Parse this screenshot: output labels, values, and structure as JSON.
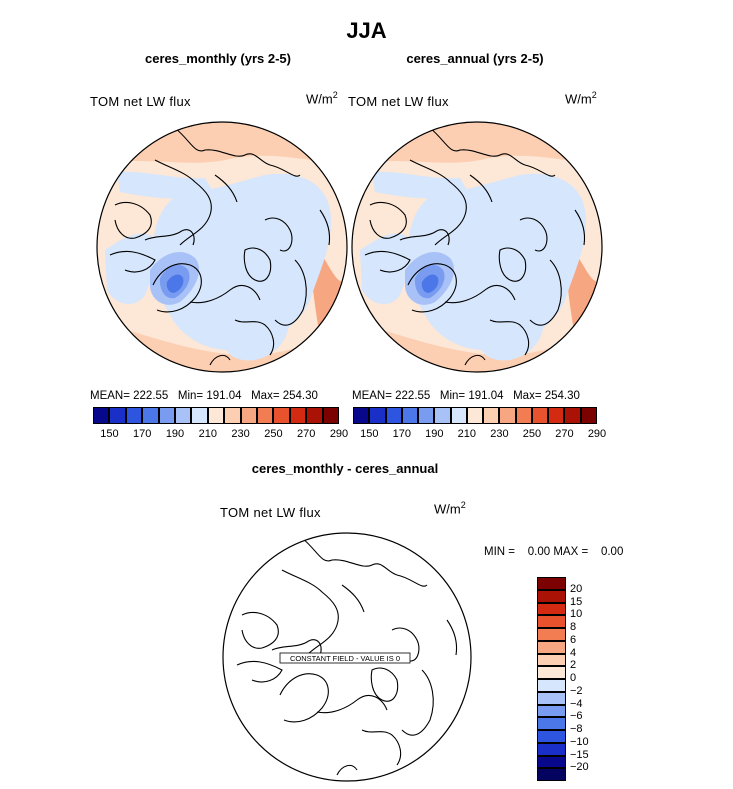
{
  "header": {
    "title": "JJA"
  },
  "panels": [
    {
      "id": "left",
      "title": "ceres_monthly (yrs 2-5)",
      "label": "TOM net LW flux",
      "units": "W/m",
      "stats": "MEAN= 222.55   Min= 191.04   Max= 254.30",
      "colorbar_ticks": [
        "150",
        "170",
        "190",
        "210",
        "230",
        "250",
        "270",
        "290"
      ]
    },
    {
      "id": "right",
      "title": "ceres_annual (yrs 2-5)",
      "label": "TOM net LW flux",
      "units": "W/m",
      "stats": "MEAN= 222.55   Min= 191.04   Max= 254.30",
      "colorbar_ticks": [
        "150",
        "170",
        "190",
        "210",
        "230",
        "250",
        "270",
        "290"
      ]
    }
  ],
  "diff_panel": {
    "title": "ceres_monthly - ceres_annual",
    "label": "TOM net LW flux",
    "units": "W/m",
    "minmax": "MIN =    0.00 MAX =    0.00",
    "constant_field": "CONSTANT FIELD - VALUE IS 0",
    "colorbar_ticks": [
      "20",
      "15",
      "10",
      "8",
      "6",
      "4",
      "2",
      "0",
      "−2",
      "−4",
      "−6",
      "−8",
      "−10",
      "−15",
      "−20"
    ]
  },
  "colors": {
    "abs_scale": [
      "#08088c",
      "#1a2fc8",
      "#2d55e0",
      "#4b77e8",
      "#7a9cf0",
      "#a8c2f8",
      "#d6e6fc",
      "#fde7d6",
      "#fccfb2",
      "#f7a682",
      "#f27d52",
      "#e8522c",
      "#d52a12",
      "#aa1206",
      "#7c0202"
    ],
    "diff_scale": [
      "#7c0202",
      "#aa1206",
      "#d52a12",
      "#e8522c",
      "#f27d52",
      "#f7a682",
      "#fccfb2",
      "#fde7d6",
      "#d6e6fc",
      "#a8c2f8",
      "#7a9cf0",
      "#4b77e8",
      "#2d55e0",
      "#1a2fc8",
      "#08088c",
      "#040460"
    ]
  }
}
